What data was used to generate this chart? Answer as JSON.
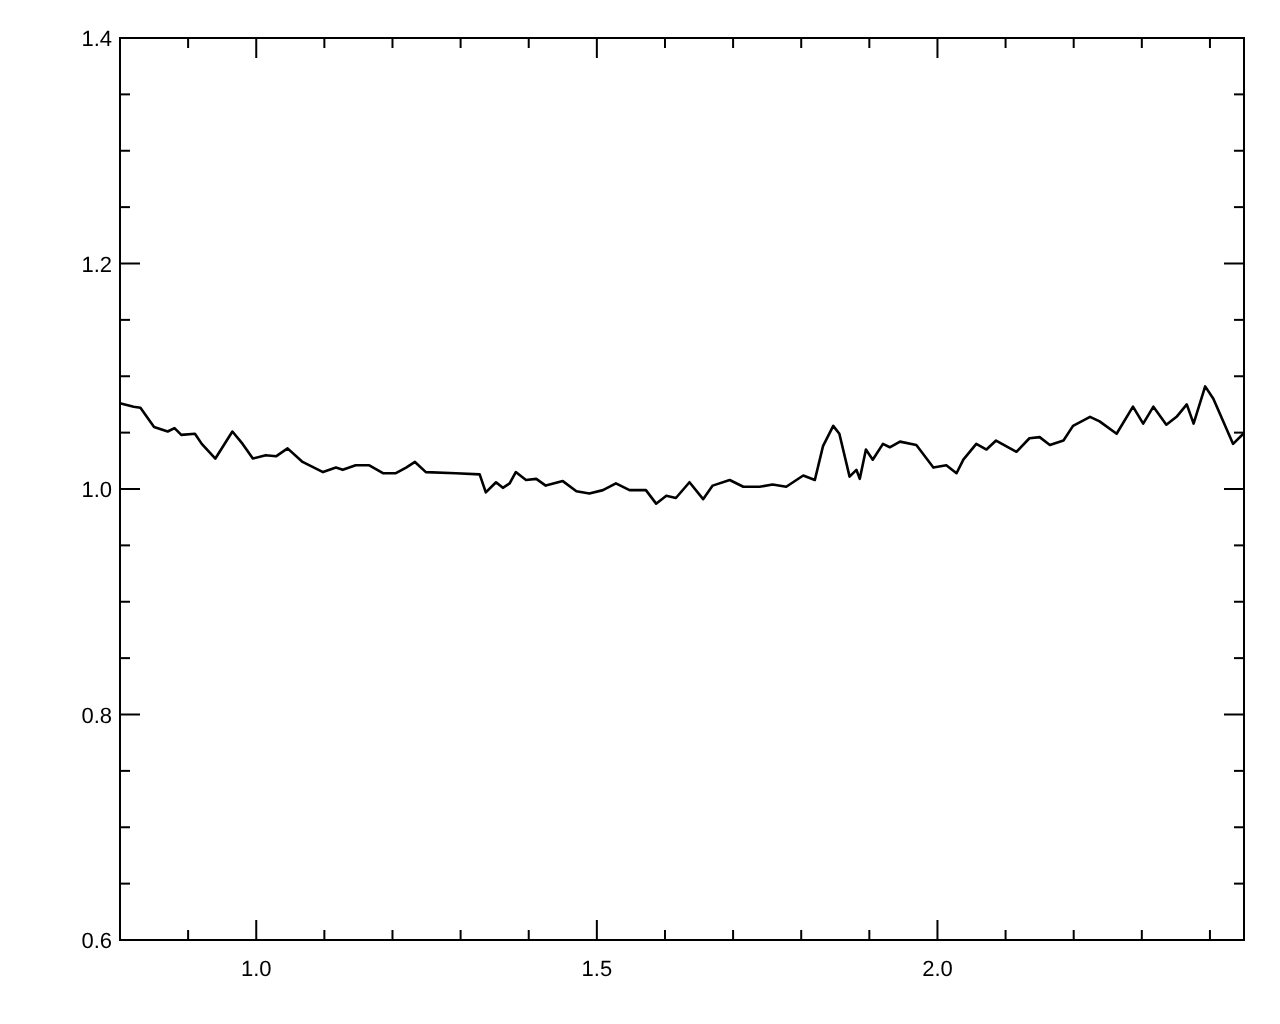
{
  "chart_data": {
    "type": "line",
    "xlim": [
      0.8,
      2.45
    ],
    "ylim": [
      0.6,
      1.4
    ],
    "xticks": [
      {
        "value": 0.9,
        "label": null
      },
      {
        "value": 1.0,
        "label": "1.0"
      },
      {
        "value": 1.1,
        "label": null
      },
      {
        "value": 1.2,
        "label": null
      },
      {
        "value": 1.3,
        "label": null
      },
      {
        "value": 1.4,
        "label": null
      },
      {
        "value": 1.5,
        "label": "1.5"
      },
      {
        "value": 1.6,
        "label": null
      },
      {
        "value": 1.7,
        "label": null
      },
      {
        "value": 1.8,
        "label": null
      },
      {
        "value": 1.9,
        "label": null
      },
      {
        "value": 2.0,
        "label": "2.0"
      },
      {
        "value": 2.1,
        "label": null
      },
      {
        "value": 2.2,
        "label": null
      },
      {
        "value": 2.3,
        "label": null
      },
      {
        "value": 2.4,
        "label": null
      }
    ],
    "yticks": [
      {
        "value": 0.6,
        "label": "0.6"
      },
      {
        "value": 0.65,
        "label": null
      },
      {
        "value": 0.7,
        "label": null
      },
      {
        "value": 0.75,
        "label": null
      },
      {
        "value": 0.8,
        "label": "0.8"
      },
      {
        "value": 0.85,
        "label": null
      },
      {
        "value": 0.9,
        "label": null
      },
      {
        "value": 0.95,
        "label": null
      },
      {
        "value": 1.0,
        "label": "1.0"
      },
      {
        "value": 1.05,
        "label": null
      },
      {
        "value": 1.1,
        "label": null
      },
      {
        "value": 1.15,
        "label": null
      },
      {
        "value": 1.2,
        "label": "1.2"
      },
      {
        "value": 1.25,
        "label": null
      },
      {
        "value": 1.3,
        "label": null
      },
      {
        "value": 1.35,
        "label": null
      },
      {
        "value": 1.4,
        "label": "1.4"
      }
    ],
    "grid": false,
    "marker": "none",
    "line_style": "solid",
    "series": [
      {
        "color": "#000000",
        "x": [
          0.8,
          0.82,
          0.83,
          0.85,
          0.87,
          0.88,
          0.89,
          0.91,
          0.92,
          0.94,
          0.965,
          0.98,
          0.995,
          1.014,
          1.029,
          1.046,
          1.068,
          1.098,
          1.117,
          1.127,
          1.146,
          1.166,
          1.186,
          1.205,
          1.22,
          1.233,
          1.249,
          1.293,
          1.328,
          1.337,
          1.352,
          1.362,
          1.372,
          1.381,
          1.396,
          1.411,
          1.425,
          1.45,
          1.47,
          1.489,
          1.509,
          1.528,
          1.548,
          1.572,
          1.587,
          1.602,
          1.616,
          1.636,
          1.656,
          1.67,
          1.695,
          1.715,
          1.739,
          1.758,
          1.778,
          1.803,
          1.82,
          1.832,
          1.847,
          1.856,
          1.871,
          1.881,
          1.886,
          1.895,
          1.905,
          1.92,
          1.93,
          1.945,
          1.969,
          1.994,
          2.013,
          2.028,
          2.038,
          2.057,
          2.072,
          2.086,
          2.116,
          2.135,
          2.15,
          2.165,
          2.185,
          2.199,
          2.224,
          2.238,
          2.263,
          2.287,
          2.302,
          2.317,
          2.336,
          2.351,
          2.366,
          2.376,
          2.393,
          2.405,
          2.434,
          2.449
        ],
        "values": [
          1.076,
          1.073,
          1.072,
          1.055,
          1.051,
          1.054,
          1.048,
          1.049,
          1.04,
          1.027,
          1.051,
          1.04,
          1.027,
          1.03,
          1.029,
          1.036,
          1.024,
          1.015,
          1.019,
          1.017,
          1.021,
          1.021,
          1.014,
          1.014,
          1.019,
          1.024,
          1.015,
          1.014,
          1.013,
          0.997,
          1.006,
          1.001,
          1.005,
          1.015,
          1.008,
          1.009,
          1.003,
          1.007,
          0.998,
          0.996,
          0.999,
          1.005,
          0.999,
          0.999,
          0.987,
          0.994,
          0.992,
          1.006,
          0.991,
          1.003,
          1.008,
          1.002,
          1.002,
          1.004,
          1.002,
          1.012,
          1.008,
          1.038,
          1.056,
          1.049,
          1.011,
          1.017,
          1.009,
          1.035,
          1.026,
          1.04,
          1.037,
          1.042,
          1.039,
          1.019,
          1.021,
          1.014,
          1.026,
          1.04,
          1.035,
          1.043,
          1.033,
          1.045,
          1.046,
          1.039,
          1.043,
          1.056,
          1.064,
          1.06,
          1.049,
          1.073,
          1.058,
          1.073,
          1.057,
          1.064,
          1.075,
          1.058,
          1.091,
          1.08,
          1.04,
          1.049
        ]
      }
    ]
  }
}
